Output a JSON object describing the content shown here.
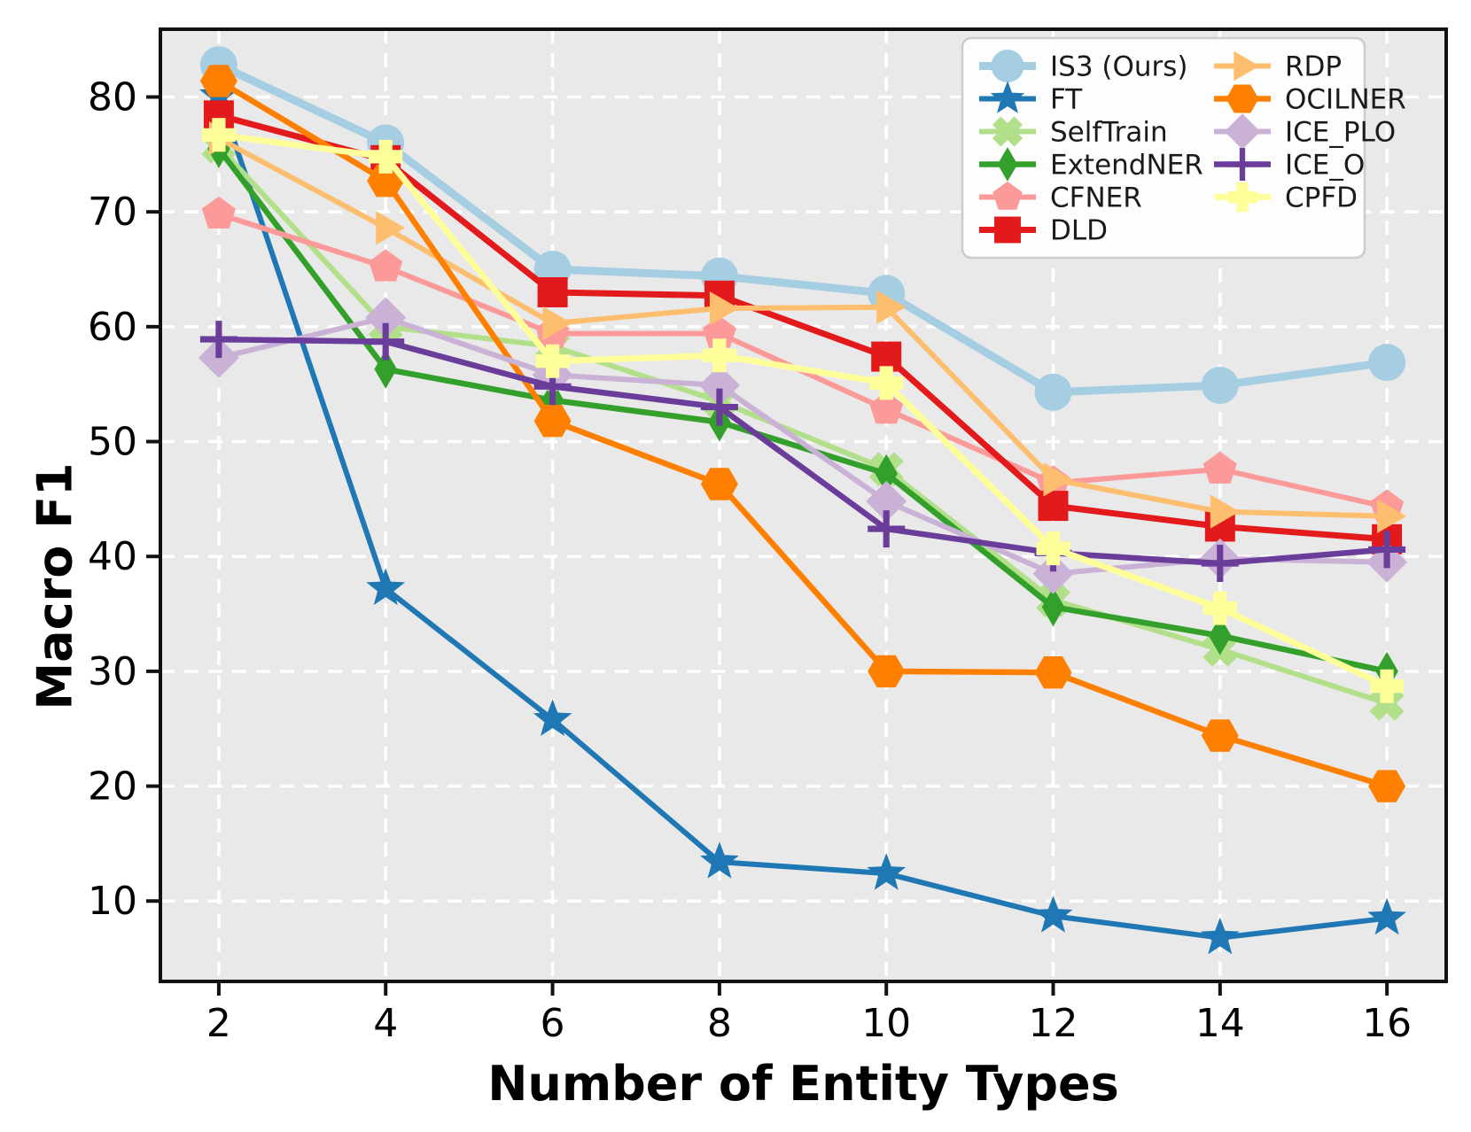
{
  "chart_data": {
    "type": "line",
    "title": "",
    "xlabel": "Number of Entity Types",
    "ylabel": "Macro F1",
    "x": [
      2,
      4,
      6,
      8,
      10,
      12,
      14,
      16
    ],
    "xticks": [
      2,
      4,
      6,
      8,
      10,
      12,
      14,
      16
    ],
    "yticks": [
      10,
      20,
      30,
      40,
      50,
      60,
      70,
      80
    ],
    "xlim": [
      1.3,
      16.71
    ],
    "ylim": [
      3.0,
      85.9
    ],
    "grid": "white dashed on gray background",
    "legend_position": "upper right, 2 columns",
    "legend_columns": [
      6,
      5
    ],
    "series": [
      {
        "name": "IS3 (Ours)",
        "color": "#a6cee3",
        "marker": "circle",
        "marker_size": 42,
        "line_width": 9,
        "values": [
          82.8,
          76.0,
          65.0,
          64.4,
          62.9,
          54.3,
          54.9,
          56.9
        ]
      },
      {
        "name": "FT",
        "color": "#1f78b4",
        "marker": "star",
        "marker_size": 46,
        "line_width": 6,
        "values": [
          80.1,
          37.2,
          25.8,
          13.4,
          12.4,
          8.7,
          6.8,
          8.5
        ]
      },
      {
        "name": "SelfTrain",
        "color": "#b2df8a",
        "marker": "x-thick",
        "marker_size": 38,
        "line_width": 6,
        "values": [
          75.7,
          60.0,
          58.3,
          53.5,
          47.6,
          36.2,
          31.9,
          27.2
        ]
      },
      {
        "name": "ExtendNER",
        "color": "#33a02c",
        "marker": "diamond-thin",
        "marker_size": 44,
        "line_width": 6.5,
        "values": [
          75.5,
          56.3,
          53.6,
          51.7,
          47.2,
          35.6,
          33.1,
          30.0
        ]
      },
      {
        "name": "CFNER",
        "color": "#fb9a99",
        "marker": "pentagon",
        "marker_size": 40,
        "line_width": 6,
        "values": [
          69.8,
          65.2,
          59.4,
          59.4,
          52.8,
          46.4,
          47.6,
          44.3
        ]
      },
      {
        "name": "DLD",
        "color": "#e31a1c",
        "marker": "square",
        "marker_size": 34,
        "line_width": 7,
        "values": [
          78.4,
          74.5,
          63.0,
          62.7,
          57.4,
          44.4,
          42.6,
          41.5
        ]
      },
      {
        "name": "RDP",
        "color": "#fdbf6f",
        "marker": "triangle-right",
        "marker_size": 44,
        "line_width": 6,
        "values": [
          76.4,
          68.6,
          60.3,
          61.6,
          61.7,
          46.7,
          43.9,
          43.5
        ]
      },
      {
        "name": "OCILNER",
        "color": "#ff7f00",
        "marker": "hexagon",
        "marker_size": 42,
        "line_width": 6.5,
        "values": [
          81.4,
          72.7,
          51.8,
          46.3,
          30.0,
          29.9,
          24.4,
          20.0
        ]
      },
      {
        "name": "ICE_PLO",
        "color": "#cab2d6",
        "marker": "diamond",
        "marker_size": 46,
        "line_width": 6,
        "values": [
          57.3,
          60.8,
          55.8,
          54.9,
          44.8,
          38.5,
          39.8,
          39.5
        ]
      },
      {
        "name": "ICE_O",
        "color": "#6a3d9a",
        "marker": "plus-thin",
        "marker_size": 42,
        "line_width": 6.5,
        "values": [
          58.9,
          58.7,
          54.8,
          53.0,
          42.4,
          40.3,
          39.4,
          40.6
        ]
      },
      {
        "name": "CPFD",
        "color": "#ffff99",
        "marker": "plus-thick",
        "marker_size": 38,
        "line_width": 7,
        "values": [
          76.7,
          74.8,
          57.0,
          57.5,
          55.1,
          40.7,
          35.5,
          28.7
        ]
      }
    ],
    "colors": {
      "plot_bg": "#e9e9e9",
      "grid": "#ffffff",
      "spine": "#111111",
      "tick_label": "#000000",
      "legend_bg": "#fdfdfd",
      "legend_border": "#cccccc",
      "legend_text": "#1a1a1a"
    }
  }
}
